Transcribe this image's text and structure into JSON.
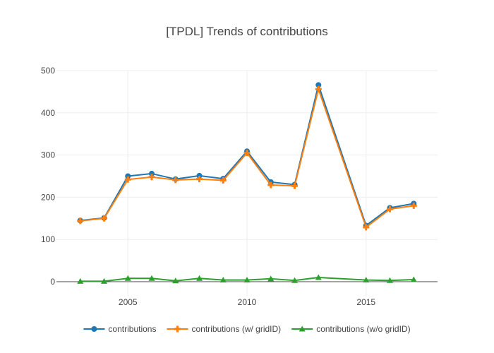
{
  "chart_data": {
    "type": "line",
    "title": "[TPDL] Trends of contributions",
    "xlabel": "",
    "ylabel": "",
    "x": [
      2003,
      2004,
      2005,
      2006,
      2007,
      2008,
      2009,
      2010,
      2011,
      2012,
      2013,
      2015,
      2016,
      2017
    ],
    "xlim": [
      2002,
      2018
    ],
    "ylim": [
      -17,
      500
    ],
    "xticks": [
      2005,
      2010,
      2015
    ],
    "yticks": [
      0,
      100,
      200,
      300,
      400,
      500
    ],
    "xtick_labels": [
      "2005",
      "2010",
      "2015"
    ],
    "ytick_labels": [
      "0",
      "100",
      "200",
      "300",
      "400",
      "500"
    ],
    "grid": true,
    "legend_position": "bottom-center",
    "series": [
      {
        "name": "contributions",
        "color": "#1f77b4",
        "marker": "circle",
        "values": [
          145,
          151,
          250,
          256,
          243,
          251,
          244,
          309,
          236,
          230,
          466,
          133,
          175,
          185
        ]
      },
      {
        "name": "contributions (w/ gridID)",
        "color": "#ff7f0e",
        "marker": "cross",
        "values": [
          144,
          150,
          242,
          248,
          241,
          243,
          240,
          305,
          229,
          227,
          456,
          129,
          172,
          180
        ]
      },
      {
        "name": "contributions (w/o gridID)",
        "color": "#2ca02c",
        "marker": "triangle-up",
        "values": [
          1,
          1,
          8,
          8,
          2,
          8,
          4,
          4,
          7,
          3,
          10,
          4,
          3,
          5
        ]
      }
    ]
  }
}
